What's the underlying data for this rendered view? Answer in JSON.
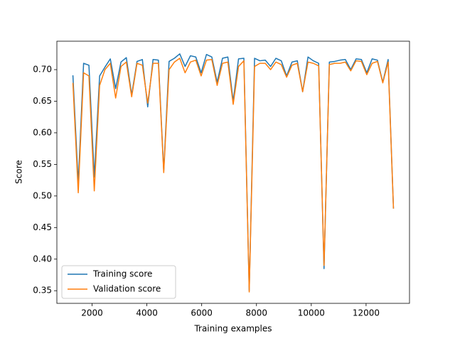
{
  "chart_data": {
    "type": "line",
    "xlabel": "Training examples",
    "ylabel": "Score",
    "x": [
      1300,
      1495,
      1690,
      1885,
      2080,
      2275,
      2470,
      2665,
      2860,
      3055,
      3250,
      3445,
      3640,
      3835,
      4030,
      4225,
      4420,
      4615,
      4810,
      5005,
      5200,
      5395,
      5590,
      5785,
      5980,
      6175,
      6370,
      6565,
      6760,
      6955,
      7150,
      7345,
      7540,
      7735,
      7930,
      8125,
      8320,
      8515,
      8710,
      8905,
      9100,
      9295,
      9490,
      9685,
      9880,
      10075,
      10270,
      10465,
      10660,
      10855,
      11050,
      11245,
      11440,
      11635,
      11830,
      12025,
      12220,
      12415,
      12610,
      12805,
      13000
    ],
    "series": [
      {
        "name": "Training score",
        "color": "#1f77b4",
        "values": [
          0.691,
          0.52,
          0.71,
          0.707,
          0.53,
          0.69,
          0.704,
          0.717,
          0.67,
          0.712,
          0.719,
          0.66,
          0.713,
          0.716,
          0.641,
          0.716,
          0.715,
          0.54,
          0.713,
          0.718,
          0.725,
          0.705,
          0.722,
          0.72,
          0.695,
          0.724,
          0.72,
          0.68,
          0.718,
          0.72,
          0.65,
          0.717,
          0.718,
          0.35,
          0.718,
          0.714,
          0.715,
          0.705,
          0.718,
          0.714,
          0.69,
          0.712,
          0.714,
          0.665,
          0.72,
          0.714,
          0.71,
          0.385,
          0.712,
          0.713,
          0.715,
          0.716,
          0.7,
          0.717,
          0.716,
          0.695,
          0.717,
          0.715,
          0.68,
          0.716,
          0.48
        ]
      },
      {
        "name": "Validation score",
        "color": "#ff7f0e",
        "values": [
          0.679,
          0.505,
          0.695,
          0.69,
          0.508,
          0.675,
          0.7,
          0.71,
          0.655,
          0.705,
          0.712,
          0.657,
          0.71,
          0.707,
          0.647,
          0.71,
          0.71,
          0.537,
          0.7,
          0.712,
          0.718,
          0.695,
          0.712,
          0.715,
          0.69,
          0.715,
          0.716,
          0.675,
          0.71,
          0.712,
          0.645,
          0.705,
          0.714,
          0.348,
          0.705,
          0.71,
          0.71,
          0.7,
          0.712,
          0.708,
          0.688,
          0.707,
          0.71,
          0.665,
          0.712,
          0.71,
          0.706,
          0.39,
          0.708,
          0.71,
          0.71,
          0.712,
          0.698,
          0.714,
          0.713,
          0.692,
          0.71,
          0.713,
          0.679,
          0.712,
          0.48
        ]
      }
    ],
    "xlim": [
      715,
      13585
    ],
    "xticks": [
      2000,
      4000,
      6000,
      8000,
      10000,
      12000
    ],
    "ylim": [
      0.33,
      0.745
    ],
    "yticks": [
      0.35,
      {
        "value": 0.4,
        "label": "0.40"
      },
      0.45,
      {
        "value": 0.5,
        "label": "0.50"
      },
      0.55,
      {
        "value": 0.6,
        "label": "0.60"
      },
      0.65,
      {
        "value": 0.7,
        "label": "0.70"
      }
    ],
    "legend": "lower left"
  }
}
